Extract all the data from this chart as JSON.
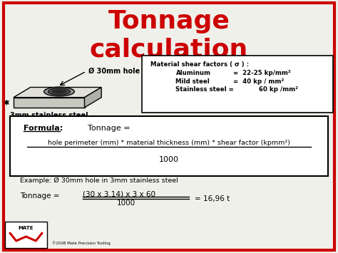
{
  "title_line1": "Tonnage",
  "title_line2": "calculation",
  "title_color": "#cc0000",
  "bg_color": "#f0f0eb",
  "border_color": "#cc0000",
  "hole_label": "Ø 30mm hole",
  "material_label": "3mm stainless steel",
  "shear_title": "Material shear factors ( σ ) :",
  "formula_label": "Formula:",
  "formula_text": "Tonnage =",
  "formula_numerator": "hole perimeter (mm) * material thickness (mm) * shear factor (kpmm²)",
  "formula_denominator": "1000",
  "example_text": "Example: Ø 30mm hole in 3mm stainless steel",
  "tonnage_label": "Tonnage = ",
  "tonnage_fraction_num": "(30 x 3.14) x 3 x 60",
  "tonnage_fraction_den": "1000",
  "tonnage_result": "= 16,96 t",
  "copyright": "©2008 Mate Precision Tooling"
}
